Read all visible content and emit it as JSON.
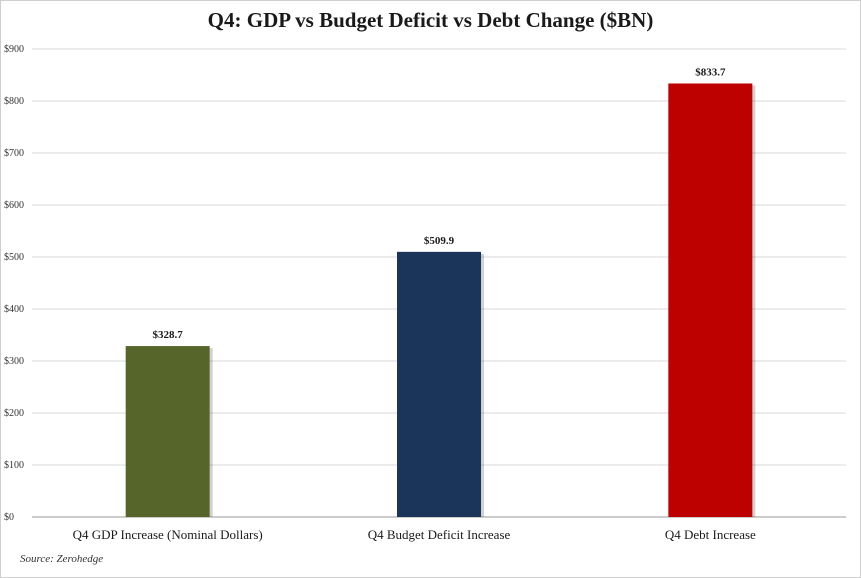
{
  "chart_data": {
    "type": "bar",
    "title": "Q4: GDP vs Budget Deficit vs Debt Change ($BN)",
    "categories": [
      "Q4 GDP Increase (Nominal Dollars)",
      "Q4 Budget Deficit Increase",
      "Q4 Debt Increase"
    ],
    "values": [
      328.7,
      509.9,
      833.7
    ],
    "data_labels": [
      "$328.7",
      "$509.9",
      "$833.7"
    ],
    "colors": [
      "#56662a",
      "#1a3559",
      "#bd0000"
    ],
    "ylim": [
      0,
      900
    ],
    "yticks": [
      0,
      100,
      200,
      300,
      400,
      500,
      600,
      700,
      800,
      900
    ],
    "ytick_labels": [
      "$0",
      "$100",
      "$200",
      "$300",
      "$400",
      "$500",
      "$600",
      "$700",
      "$800",
      "$900"
    ],
    "grid": true,
    "legend": "none",
    "xlabel": "",
    "ylabel": ""
  },
  "source": "Source: Zerohedge"
}
